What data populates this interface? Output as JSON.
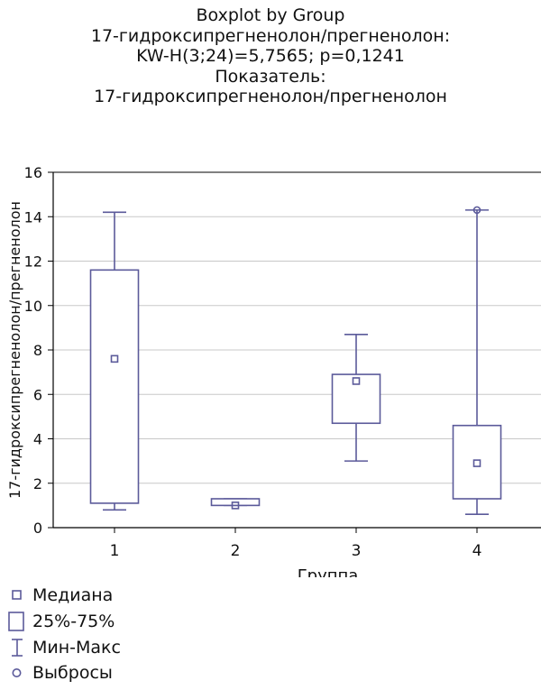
{
  "title_lines": [
    "Boxplot by Group",
    "17-гидроксипрегненолон/прегненолон:",
    "KW-H(3;24)=5,7565; p=0,1241",
    "Показатель:",
    "17-гидроксипрегненолон/прегненолон"
  ],
  "colors": {
    "box": "#5b5a9a",
    "grid": "#c8c8c8",
    "axis": "#000000"
  },
  "chart_data": {
    "type": "boxplot",
    "xlabel": "Группа",
    "ylabel": "17-гидроксипрегненолон/прегненолон",
    "ylim": [
      0,
      16
    ],
    "yticks": [
      0,
      2,
      4,
      6,
      8,
      10,
      12,
      14,
      16
    ],
    "grid": true,
    "categories": [
      "1",
      "2",
      "3",
      "4"
    ],
    "boxes": [
      {
        "group": "1",
        "min": 0.8,
        "q1": 1.1,
        "median": 7.6,
        "q3": 11.6,
        "max": 14.2,
        "outliers": []
      },
      {
        "group": "2",
        "min": 1.0,
        "q1": 1.0,
        "median": 1.0,
        "q3": 1.3,
        "max": 1.3,
        "outliers": []
      },
      {
        "group": "3",
        "min": 3.0,
        "q1": 4.7,
        "median": 6.6,
        "q3": 6.9,
        "max": 8.7,
        "outliers": []
      },
      {
        "group": "4",
        "min": 0.6,
        "q1": 1.3,
        "median": 2.9,
        "q3": 4.6,
        "max": 14.3,
        "outliers": [
          14.3
        ]
      }
    ]
  },
  "legend": {
    "median": "Медиана",
    "box": "25%-75%",
    "whisker": "Мин-Макс",
    "outlier": "Выбросы"
  }
}
